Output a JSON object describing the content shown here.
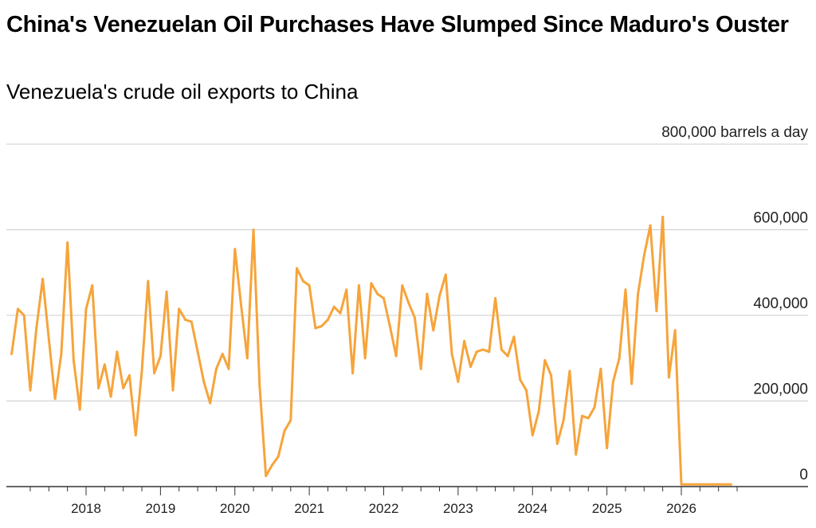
{
  "title": "China's Venezuelan Oil Purchases Have Slumped Since Maduro's Ouster",
  "subtitle": "Venezuela's crude oil exports to China",
  "chart_data": {
    "type": "line",
    "title": "China's Venezuelan Oil Purchases Have Slumped Since Maduro's Ouster",
    "subtitle": "Venezuela's crude oil exports to China",
    "ylabel": "800,000 barrels a day",
    "xlabel": "",
    "ylim": [
      0,
      800000
    ],
    "yticks": [
      0,
      200000,
      400000,
      600000,
      800000
    ],
    "ytick_labels": [
      "0",
      "200,000",
      "400,000",
      "600,000",
      "800,000 barrels a day"
    ],
    "xlim": [
      2017.0,
      2027.0
    ],
    "xticks": [
      2018,
      2019,
      2020,
      2021,
      2022,
      2023,
      2024,
      2025,
      2026
    ],
    "xtick_labels": [
      "2018",
      "2019",
      "2020",
      "2021",
      "2022",
      "2023",
      "2024",
      "2025",
      "2026"
    ],
    "grid": true,
    "series_color": "#F6A43B",
    "x": [
      2017.0,
      2017.083,
      2017.167,
      2017.25,
      2017.333,
      2017.417,
      2017.5,
      2017.583,
      2017.667,
      2017.75,
      2017.833,
      2017.917,
      2018.0,
      2018.083,
      2018.167,
      2018.25,
      2018.333,
      2018.417,
      2018.5,
      2018.583,
      2018.667,
      2018.75,
      2018.833,
      2018.917,
      2019.0,
      2019.083,
      2019.167,
      2019.25,
      2019.333,
      2019.417,
      2019.5,
      2019.583,
      2019.667,
      2019.75,
      2019.833,
      2019.917,
      2020.0,
      2020.083,
      2020.167,
      2020.25,
      2020.333,
      2020.417,
      2020.5,
      2020.583,
      2020.667,
      2020.75,
      2020.833,
      2020.917,
      2021.0,
      2021.083,
      2021.167,
      2021.25,
      2021.333,
      2021.417,
      2021.5,
      2021.583,
      2021.667,
      2021.75,
      2021.833,
      2021.917,
      2022.0,
      2022.083,
      2022.167,
      2022.25,
      2022.333,
      2022.417,
      2022.5,
      2022.583,
      2022.667,
      2022.75,
      2022.833,
      2022.917,
      2023.0,
      2023.083,
      2023.167,
      2023.25,
      2023.333,
      2023.417,
      2023.5,
      2023.583,
      2023.667,
      2023.75,
      2023.833,
      2023.917,
      2024.0,
      2024.083,
      2024.167,
      2024.25,
      2024.333,
      2024.417,
      2024.5,
      2024.583,
      2024.667,
      2024.75,
      2024.833,
      2024.917,
      2025.0,
      2025.083,
      2025.167,
      2025.25,
      2025.333,
      2025.417,
      2025.5,
      2025.583,
      2025.667,
      2025.75,
      2025.833,
      2025.917,
      2026.0,
      2026.083,
      2026.167,
      2026.25,
      2026.333,
      2026.417,
      2026.5,
      2026.583,
      2026.667
    ],
    "y": [
      310000,
      415000,
      400000,
      225000,
      370000,
      485000,
      345000,
      205000,
      310000,
      570000,
      295000,
      180000,
      415000,
      470000,
      230000,
      285000,
      210000,
      315000,
      230000,
      260000,
      120000,
      270000,
      480000,
      265000,
      305000,
      455000,
      225000,
      415000,
      390000,
      385000,
      315000,
      245000,
      195000,
      275000,
      310000,
      275000,
      555000,
      425000,
      300000,
      600000,
      235000,
      25000,
      50000,
      70000,
      130000,
      155000,
      510000,
      480000,
      470000,
      370000,
      375000,
      390000,
      420000,
      405000,
      460000,
      265000,
      470000,
      300000,
      475000,
      450000,
      440000,
      375000,
      305000,
      470000,
      430000,
      395000,
      275000,
      450000,
      365000,
      445000,
      495000,
      310000,
      245000,
      340000,
      280000,
      315000,
      320000,
      315000,
      440000,
      320000,
      305000,
      350000,
      250000,
      225000,
      120000,
      175000,
      295000,
      260000,
      100000,
      155000,
      270000,
      75000,
      165000,
      160000,
      185000,
      275000,
      90000,
      245000,
      300000,
      460000,
      240000,
      450000,
      540000,
      610000,
      410000,
      630000,
      255000,
      365000,
      5000,
      5000,
      5000,
      5000,
      5000,
      5000,
      5000,
      5000,
      5000
    ]
  }
}
